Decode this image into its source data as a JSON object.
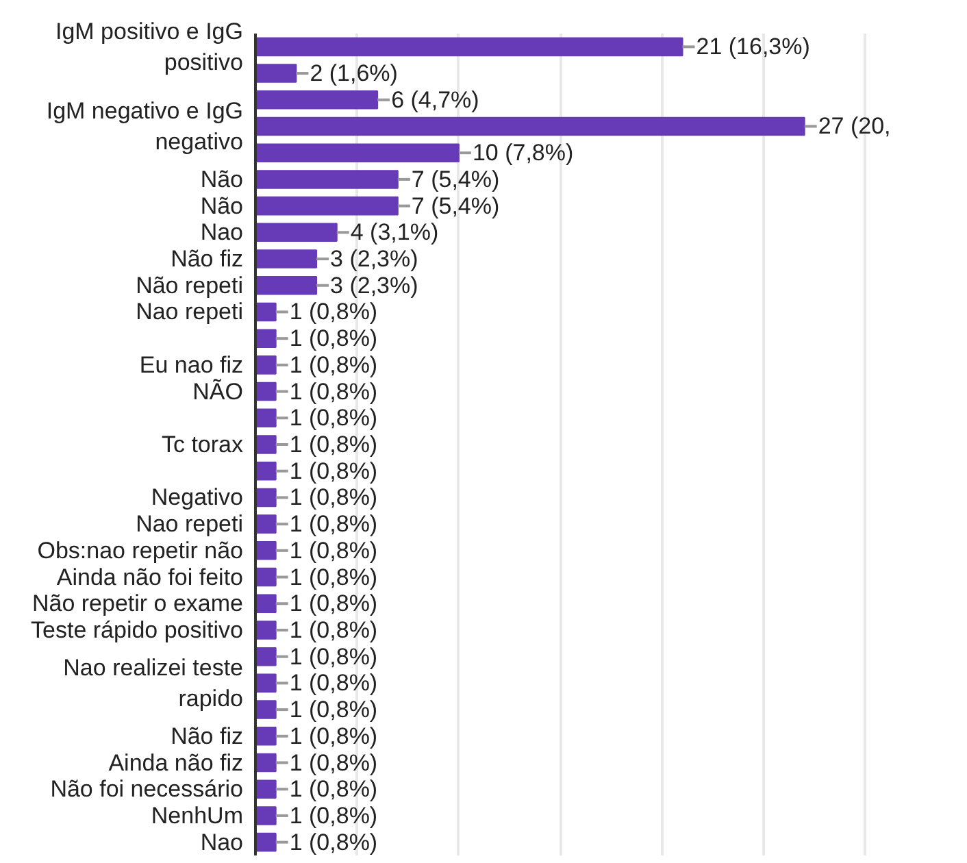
{
  "chart_data": {
    "type": "bar",
    "orientation": "horizontal",
    "color": "#673ab7",
    "categories": [
      "IgM positivo e IgG positivo",
      null,
      null,
      "IgM negativo e IgG negativo",
      null,
      "Não",
      "Não",
      "Nao",
      "Não fiz",
      "Não repeti",
      "Nao repeti",
      null,
      "Eu nao fiz",
      "NÃO",
      null,
      "Tc torax",
      null,
      "Negativo",
      "Nao repeti",
      "Obs:nao repetir não",
      "Ainda não foi feito",
      "Não repetir o exame",
      "Teste rápido positivo",
      null,
      "Nao realizei teste rapido",
      null,
      "Não fiz",
      "Ainda não fiz",
      "Não foi necessário",
      "NenhUm",
      "Nao"
    ],
    "values": [
      21,
      2,
      6,
      27,
      10,
      7,
      7,
      4,
      3,
      3,
      1,
      1,
      1,
      1,
      1,
      1,
      1,
      1,
      1,
      1,
      1,
      1,
      1,
      1,
      1,
      1,
      1,
      1,
      1,
      1,
      1
    ],
    "value_labels": [
      "21 (16,3%)",
      "2 (1,6%)",
      "6 (4,7%)",
      "27 (20,",
      "10 (7,8%)",
      "7 (5,4%)",
      "7 (5,4%)",
      "4 (3,1%)",
      "3 (2,3%)",
      "3 (2,3%)",
      "1 (0,8%)",
      "1 (0,8%)",
      "1 (0,8%)",
      "1 (0,8%)",
      "1 (0,8%)",
      "1 (0,8%)",
      "1 (0,8%)",
      "1 (0,8%)",
      "1 (0,8%)",
      "1 (0,8%)",
      "1 (0,8%)",
      "1 (0,8%)",
      "1 (0,8%)",
      "1 (0,8%)",
      "1 (0,8%)",
      "1 (0,8%)",
      "1 (0,8%)",
      "1 (0,8%)",
      "1 (0,8%)",
      "1 (0,8%)",
      "1 (0,8%)"
    ],
    "grid": "x",
    "tick_labels": "y"
  }
}
